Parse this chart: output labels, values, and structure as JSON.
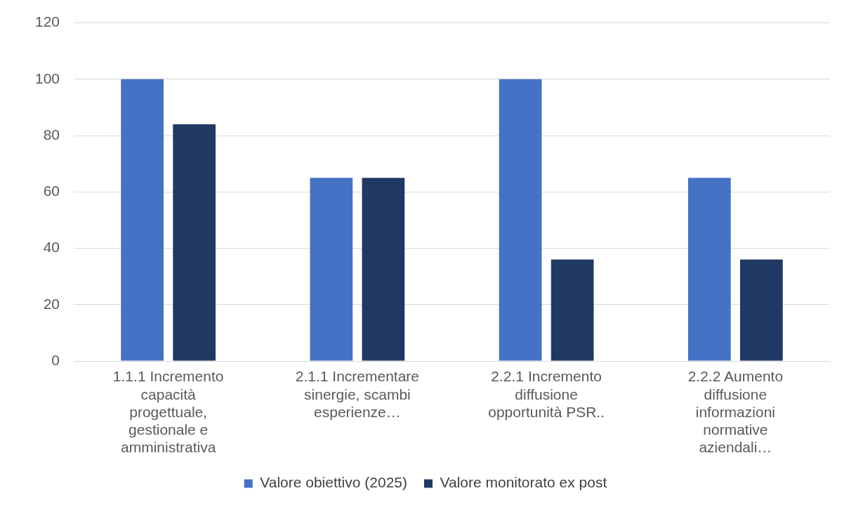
{
  "chart_data": {
    "type": "bar",
    "categories": [
      "1.1.1 Incremento capacità progettuale, gestionale e amministrativa",
      "2.1.1 Incrementare sinergie, scambi esperienze…",
      "2.2.1 Incremento diffusione opportunità PSR..",
      "2.2.2 Aumento diffusione informazioni normative aziendali…"
    ],
    "series": [
      {
        "name": "Valore obiettivo (2025)",
        "color": "#4472c4",
        "values": [
          100,
          65,
          100,
          65
        ]
      },
      {
        "name": "Valore monitorato ex post",
        "color": "#1f3864",
        "values": [
          84,
          65,
          36,
          36
        ]
      }
    ],
    "ylim": [
      0,
      120
    ],
    "yticks": [
      0,
      20,
      40,
      60,
      80,
      100,
      120
    ],
    "grid": "y",
    "legend": "bottom"
  }
}
